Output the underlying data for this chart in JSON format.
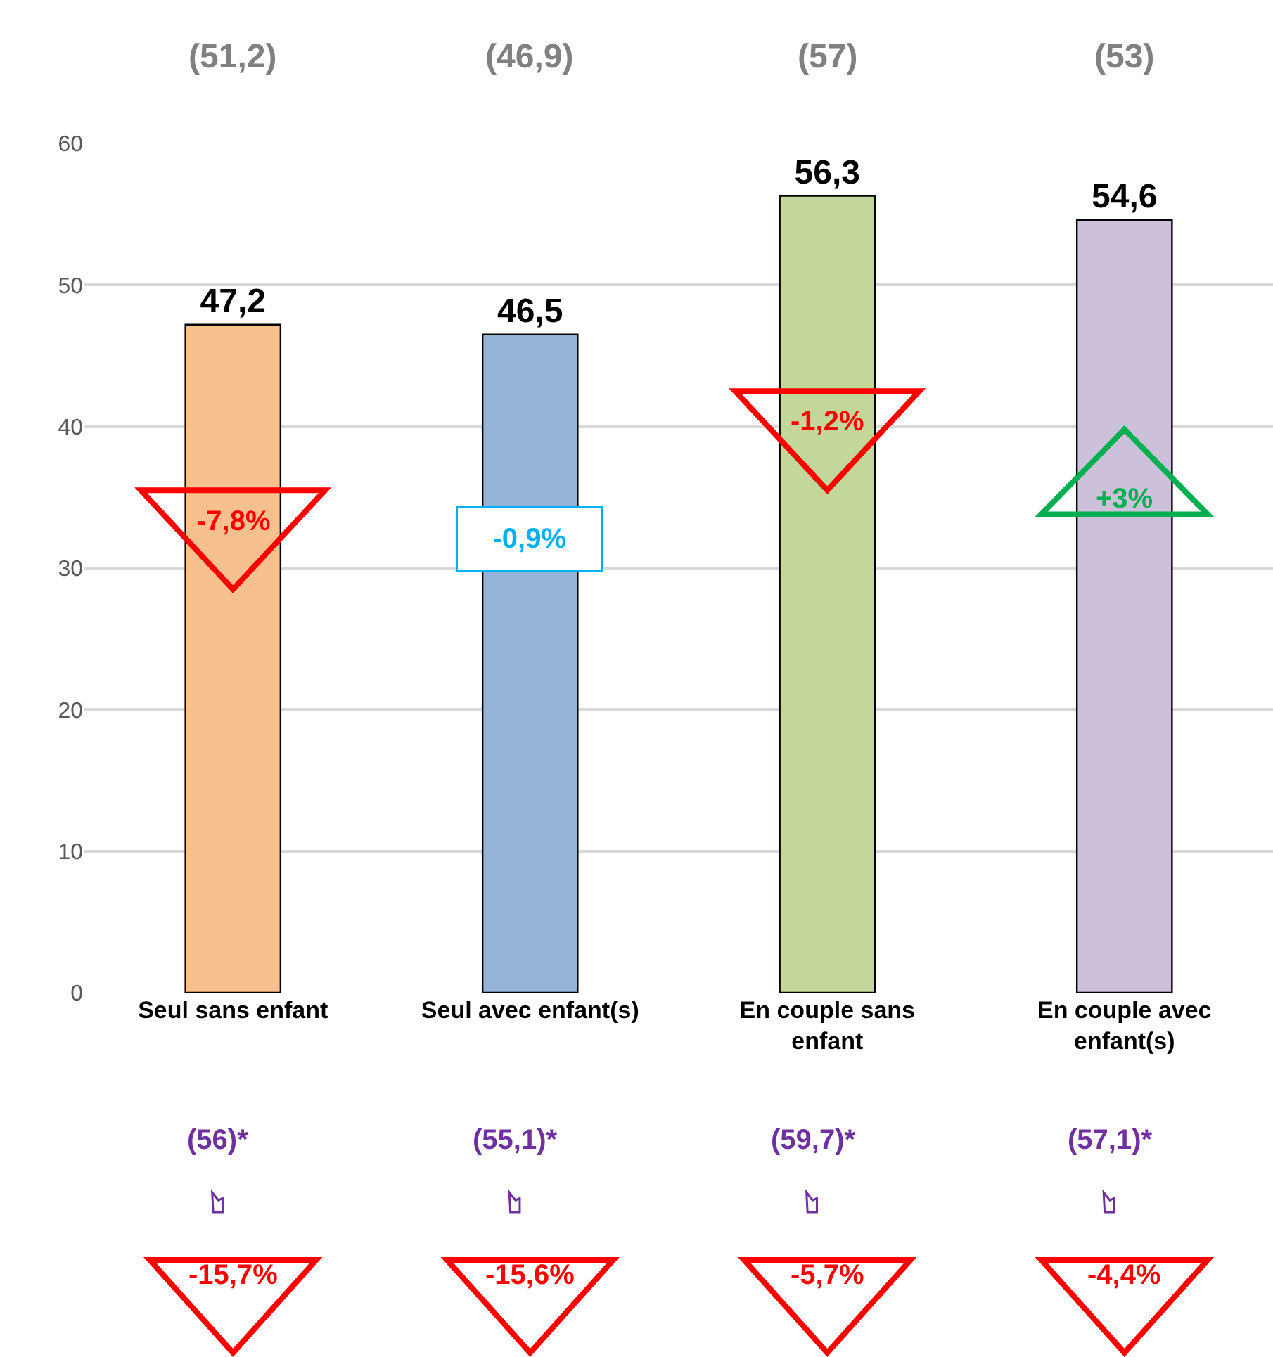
{
  "chart_data": {
    "type": "bar",
    "categories": [
      "Seul sans enfant",
      "Seul avec enfant(s)",
      "En couple sans enfant",
      "En couple avec enfant(s)"
    ],
    "values": [
      47.2,
      46.5,
      56.3,
      54.6
    ],
    "colors": [
      "#f8c08f",
      "#95b3d7",
      "#c4d79b",
      "#ccc0da"
    ],
    "value_labels": [
      "47,2",
      "46,5",
      "56,3",
      "54,6"
    ],
    "ylim": [
      0,
      60
    ],
    "yticks": [
      0,
      10,
      20,
      30,
      40,
      50,
      60
    ],
    "grid": "y",
    "annotations": [
      "(51,2)",
      "(46,9)",
      "(57)",
      "(53)",
      "-7,8%",
      "-0,9%",
      "-1,2%",
      "+3%",
      "(56)*",
      "(55,1)*",
      "(59,7)*",
      "(57,1)*",
      "-15,7%",
      "-15,6%",
      "-5,7%",
      "-4,4%"
    ]
  }
}
